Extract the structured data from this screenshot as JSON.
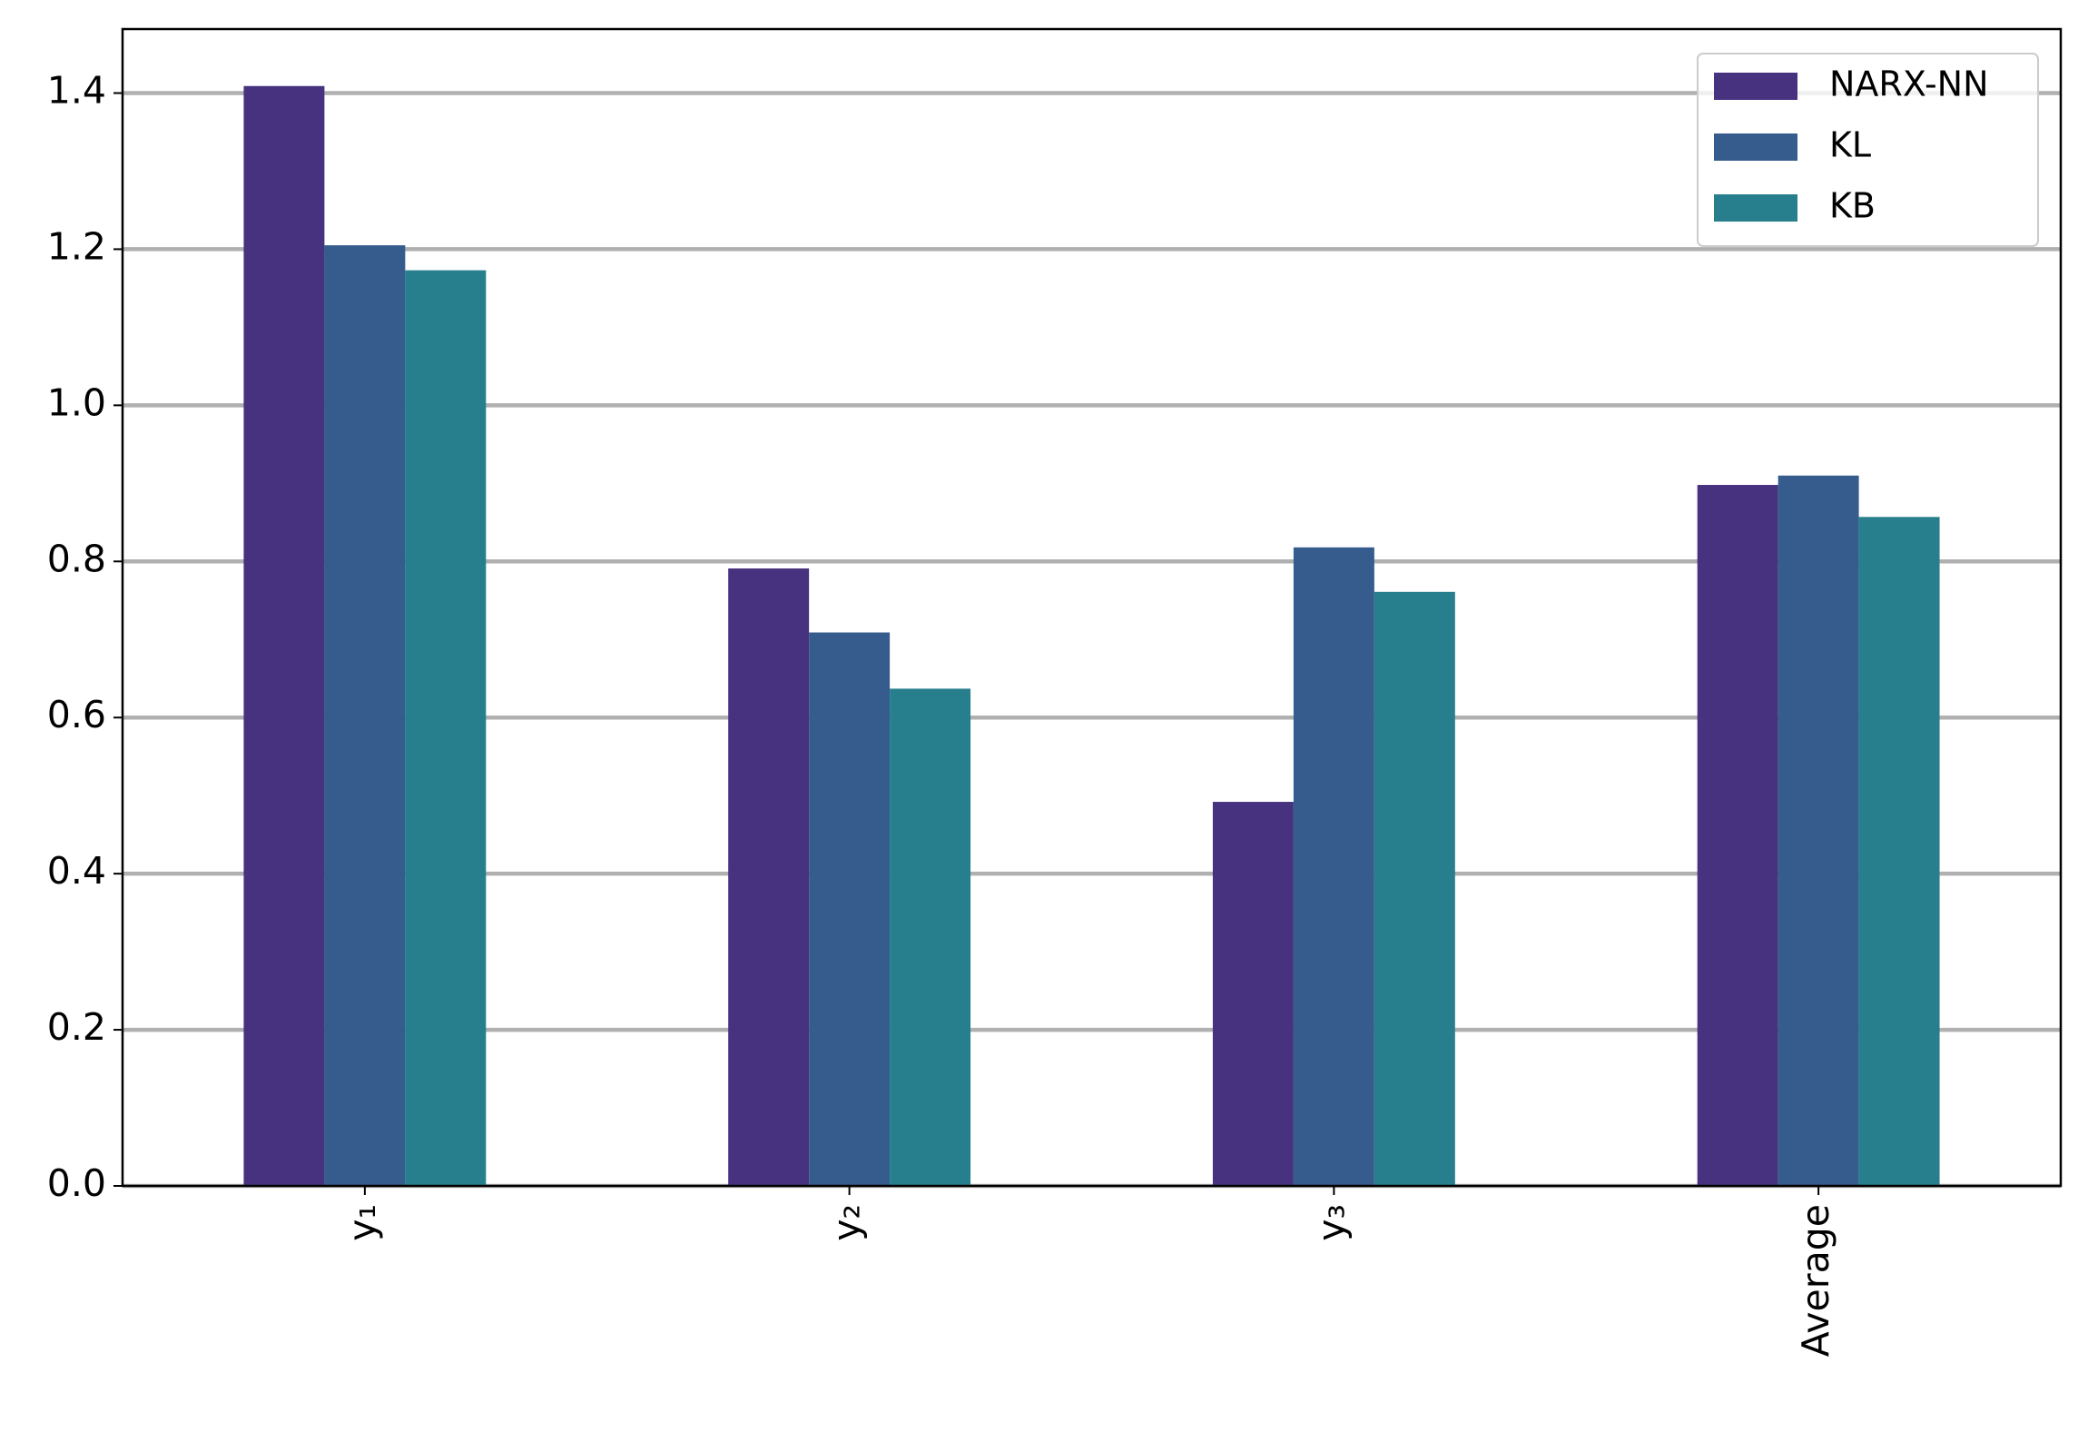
{
  "chart_data": {
    "type": "bar",
    "categories": [
      "y₁",
      "y₂",
      "y₃",
      "Average"
    ],
    "series": [
      {
        "name": "NARX-NN",
        "color": "#46327e",
        "values": [
          1.409,
          0.791,
          0.492,
          0.898
        ]
      },
      {
        "name": "KL",
        "color": "#365c8d",
        "values": [
          1.205,
          0.709,
          0.818,
          0.91
        ]
      },
      {
        "name": "KB",
        "color": "#277f8e",
        "values": [
          1.173,
          0.637,
          0.761,
          0.857
        ]
      }
    ],
    "ylim": [
      0,
      1.482
    ],
    "yticks": [
      {
        "value": 0,
        "label": "0.0"
      },
      0.2,
      0.4,
      0.6,
      0.8,
      {
        "value": 1,
        "label": "1.0"
      },
      1.2,
      1.4
    ],
    "grid": true,
    "legend": "upper right"
  }
}
